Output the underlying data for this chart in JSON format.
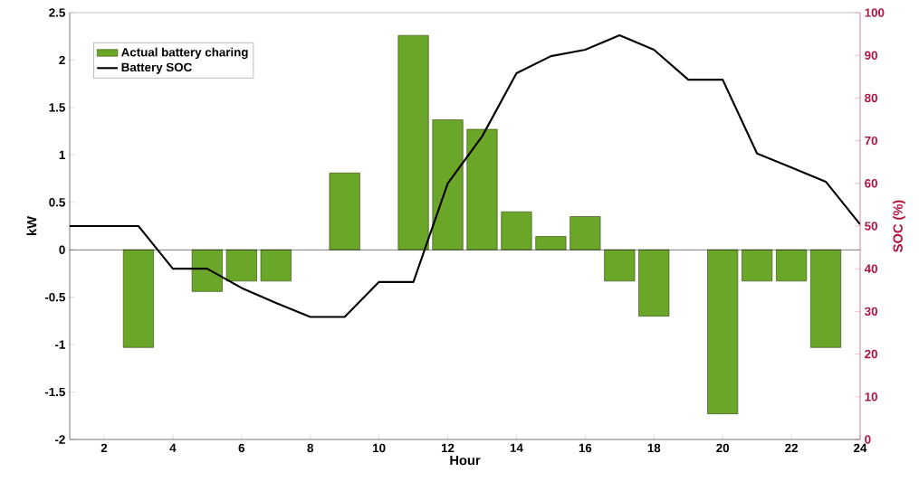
{
  "chart_data": {
    "type": "bar",
    "xlabel": "Hour",
    "ylabel": "kW",
    "y2label": "SOC (%)",
    "x": [
      1,
      2,
      3,
      4,
      5,
      6,
      7,
      8,
      9,
      10,
      11,
      12,
      13,
      14,
      15,
      16,
      17,
      18,
      19,
      20,
      21,
      22,
      23,
      24
    ],
    "series": [
      {
        "name": "Actual battery charing",
        "color": "#6aa628",
        "values": [
          null,
          null,
          -1.03,
          null,
          -0.44,
          -0.33,
          -0.33,
          null,
          0.81,
          null,
          2.26,
          1.37,
          1.27,
          0.4,
          0.14,
          0.35,
          -0.33,
          -0.7,
          null,
          -1.73,
          -0.33,
          -0.33,
          -1.03,
          null
        ]
      },
      {
        "name": "Battery SOC",
        "type": "line",
        "axis": "y2",
        "color": "#000000",
        "values": [
          50,
          50,
          50,
          40,
          40,
          35.5,
          32,
          28.7,
          28.7,
          36.9,
          36.9,
          60,
          71,
          85.8,
          89.8,
          91.3,
          94.7,
          91.3,
          84.3,
          84.3,
          67,
          63.7,
          60.4,
          50.4
        ]
      }
    ],
    "xlim": [
      1,
      24
    ],
    "xticks": [
      2,
      4,
      6,
      8,
      10,
      12,
      14,
      16,
      18,
      20,
      22,
      24
    ],
    "ylim": [
      -2,
      2.5
    ],
    "yticks": [
      -2,
      -1.5,
      -1,
      -0.5,
      0,
      0.5,
      1,
      1.5,
      2,
      2.5
    ],
    "y2lim": [
      0,
      100
    ],
    "y2ticks": [
      0,
      10,
      20,
      30,
      40,
      50,
      60,
      70,
      80,
      90,
      100
    ],
    "legend": "top left"
  }
}
